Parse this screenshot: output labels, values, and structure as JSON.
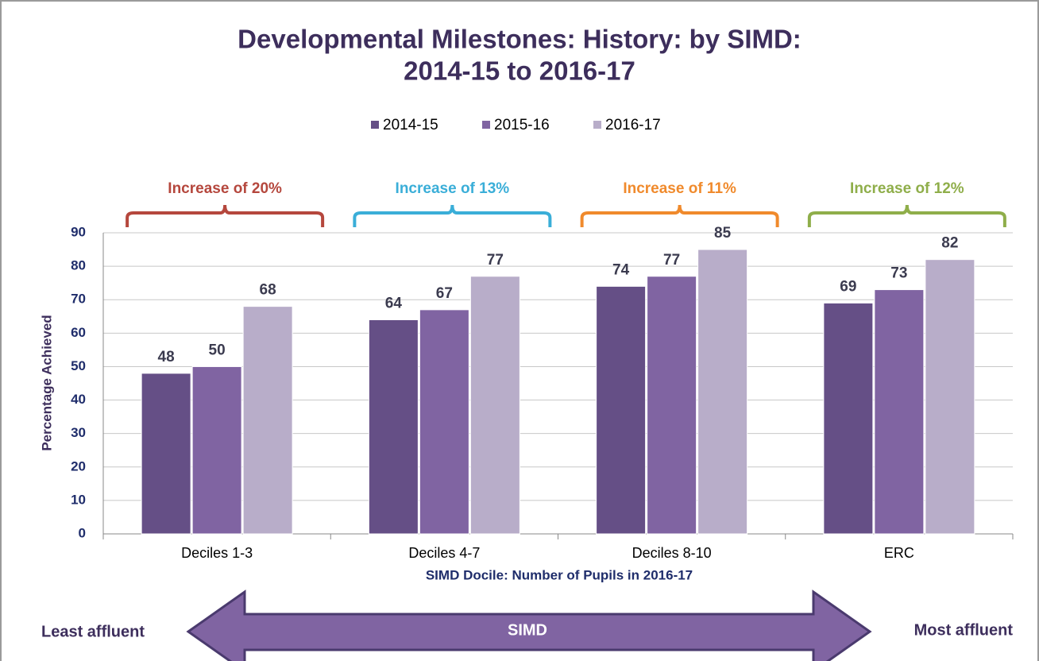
{
  "chart_data": {
    "type": "bar",
    "title": "Developmental Milestones: History: by SIMD:",
    "subtitle": "2014-15 to 2016-17",
    "x_label": "SIMD Docile: Number of Pupils in 2016-17",
    "y_label": "Percentage Achieved",
    "categories": [
      "Deciles 1-3",
      "Deciles 4-7",
      "Deciles 8-10",
      "ERC"
    ],
    "series": [
      {
        "name": "2014-15",
        "color": "#654f86",
        "values": [
          48,
          64,
          74,
          69
        ]
      },
      {
        "name": "2015-16",
        "color": "#8064a2",
        "values": [
          50,
          67,
          77,
          73
        ]
      },
      {
        "name": "2016-17",
        "color": "#b8adc9",
        "values": [
          68,
          77,
          85,
          82
        ]
      }
    ],
    "ylim": [
      0,
      90
    ],
    "yticks": [
      0,
      10,
      20,
      30,
      40,
      50,
      60,
      70,
      80,
      90
    ],
    "grid": true,
    "legend": "top",
    "annotations": [
      {
        "text": "Increase of 20%",
        "color": "#b5473d"
      },
      {
        "text": "Increase of 13%",
        "color": "#3aaed8"
      },
      {
        "text": "Increase of 11%",
        "color": "#f08a2c"
      },
      {
        "text": "Increase of 12%",
        "color": "#8fae4a"
      }
    ],
    "arrow": {
      "label": "SIMD",
      "left": "Least affluent",
      "right": "Most affluent",
      "color": "#8064a2"
    }
  }
}
